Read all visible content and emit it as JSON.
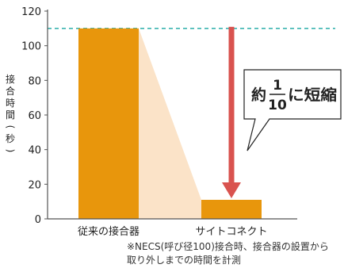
{
  "chart_data": {
    "type": "bar",
    "categories": [
      "従来の接合器",
      "サイトコネクト"
    ],
    "values": [
      110,
      11
    ],
    "ylabel": "接合時間(秒)",
    "ylim": [
      0,
      120
    ],
    "yticks": [
      0,
      20,
      40,
      60,
      80,
      100,
      120
    ],
    "grid": false,
    "reference_line": 110,
    "callout": {
      "prefix": "約",
      "fraction_numerator": "1",
      "fraction_denominator": "10",
      "suffix": "に短縮"
    },
    "colors": {
      "bar": "#E8960C",
      "shade": "#FBE3C8",
      "arrow": "#D9534F",
      "reference_line": "#3BB5B0",
      "axis": "#555555"
    }
  },
  "footnote": {
    "line1": "※NECS(呼び径100)接合時、接合器の設置から",
    "line2": "取り外しまでの時間を計測"
  }
}
